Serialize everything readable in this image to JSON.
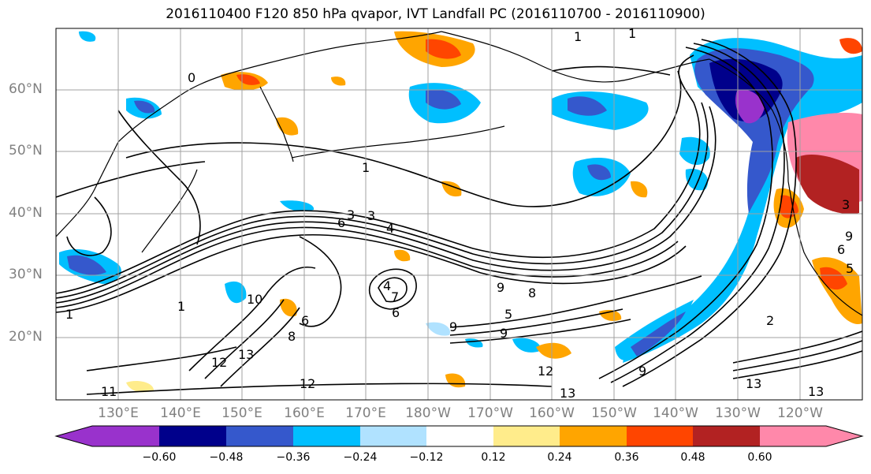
{
  "title": "2016110400 F120 850 hPa qvapor, IVT Landfall PC (2016110700 - 2016110900)",
  "lat_labels": [
    "60°N",
    "50°N",
    "40°N",
    "30°N",
    "20°N"
  ],
  "lon_labels": [
    "130°E",
    "140°E",
    "150°E",
    "160°E",
    "170°E",
    "180°W",
    "170°W",
    "160°W",
    "150°W",
    "140°W",
    "130°W",
    "120°W"
  ],
  "colorbar": {
    "colors": [
      "#9932cc",
      "#00008b",
      "#3558cc",
      "#00bfff",
      "#b0e2ff",
      "#ffffff",
      "#ffec8b",
      "#ffa500",
      "#ff4500",
      "#b22222",
      "#ff88aa"
    ],
    "tick_labels": [
      "−0.60",
      "−0.48",
      "−0.36",
      "−0.24",
      "−0.12",
      "0.12",
      "0.24",
      "0.36",
      "0.48",
      "0.60"
    ]
  },
  "contour_labels": [
    "1",
    "1",
    "0",
    "1",
    "3",
    "3",
    "4",
    "6",
    "9",
    "8",
    "9",
    "9",
    "5",
    "7",
    "4",
    "6",
    "8",
    "6",
    "12",
    "13",
    "12",
    "13",
    "13",
    "13",
    "11",
    "10",
    "1",
    "1",
    "9",
    "6",
    "12",
    "3",
    "2",
    "9",
    "5"
  ]
}
